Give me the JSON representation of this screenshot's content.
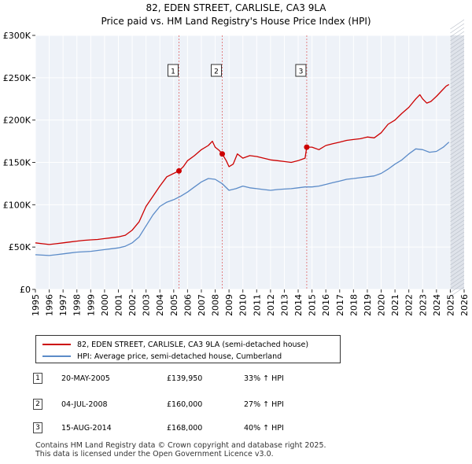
{
  "header": {
    "title": "82, EDEN STREET, CARLISLE, CA3 9LA",
    "subtitle": "Price paid vs. HM Land Registry's House Price Index (HPI)"
  },
  "chart_data": {
    "type": "line",
    "title": "82, EDEN STREET, CARLISLE, CA3 9LA",
    "subtitle": "Price paid vs. HM Land Registry's House Price Index (HPI)",
    "xlabel": "",
    "ylabel": "",
    "xlim": [
      1995,
      2026
    ],
    "ylim": [
      0,
      300000
    ],
    "grid": true,
    "x_ticks": [
      1995,
      1996,
      1997,
      1998,
      1999,
      2000,
      2001,
      2002,
      2003,
      2004,
      2005,
      2006,
      2007,
      2008,
      2009,
      2010,
      2011,
      2012,
      2013,
      2014,
      2015,
      2016,
      2017,
      2018,
      2019,
      2020,
      2021,
      2022,
      2023,
      2024,
      2025,
      2026
    ],
    "x_tick_labels": [
      "1995",
      "1996",
      "1997",
      "1998",
      "1999",
      "2000",
      "2001",
      "2002",
      "2003",
      "2004",
      "2005",
      "2006",
      "2007",
      "2008",
      "2009",
      "2010",
      "2011",
      "2012",
      "2013",
      "2014",
      "2015",
      "2016",
      "2017",
      "2018",
      "2019",
      "2020",
      "2021",
      "2022",
      "2023",
      "2024",
      "2025",
      "2026"
    ],
    "y_ticks": [
      0,
      50000,
      100000,
      150000,
      200000,
      250000,
      300000
    ],
    "y_tick_labels": [
      "£0",
      "£50K",
      "£100K",
      "£150K",
      "£200K",
      "£250K",
      "£300K"
    ],
    "future_shade_from": 2025.0,
    "series": [
      {
        "name": "82, EDEN STREET, CARLISLE, CA3 9LA (semi-detached house)",
        "color": "#cc0000",
        "x": [
          1995.0,
          1995.5,
          1996.0,
          1996.5,
          1997.0,
          1997.5,
          1998.0,
          1998.5,
          1999.0,
          1999.5,
          2000.0,
          2000.5,
          2001.0,
          2001.5,
          2002.0,
          2002.5,
          2003.0,
          2003.5,
          2004.0,
          2004.5,
          2005.0,
          2005.38,
          2005.7,
          2006.0,
          2006.5,
          2007.0,
          2007.5,
          2007.8,
          2008.0,
          2008.3,
          2008.51,
          2008.8,
          2009.0,
          2009.3,
          2009.6,
          2010.0,
          2010.5,
          2011.0,
          2011.5,
          2012.0,
          2012.5,
          2013.0,
          2013.5,
          2014.0,
          2014.5,
          2014.62,
          2015.0,
          2015.5,
          2016.0,
          2016.5,
          2017.0,
          2017.5,
          2018.0,
          2018.5,
          2019.0,
          2019.5,
          2020.0,
          2020.5,
          2021.0,
          2021.5,
          2022.0,
          2022.5,
          2022.8,
          2023.0,
          2023.3,
          2023.6,
          2024.0,
          2024.4,
          2024.7,
          2024.9
        ],
        "values": [
          55000,
          54000,
          53000,
          54000,
          55000,
          56000,
          57000,
          58000,
          58500,
          59000,
          60000,
          61000,
          62000,
          64000,
          70000,
          80000,
          98000,
          110000,
          122000,
          133000,
          137000,
          139950,
          145000,
          152000,
          158000,
          165000,
          170000,
          175000,
          168000,
          164000,
          160000,
          152000,
          145000,
          148000,
          160000,
          155000,
          158000,
          157000,
          155000,
          153000,
          152000,
          151000,
          150000,
          152000,
          155000,
          168000,
          168000,
          165000,
          170000,
          172000,
          174000,
          176000,
          177000,
          178000,
          180000,
          179000,
          185000,
          195000,
          200000,
          208000,
          215000,
          225000,
          230000,
          225000,
          220000,
          222000,
          228000,
          235000,
          240000,
          242000
        ]
      },
      {
        "name": "HPI: Average price, semi-detached house, Cumberland",
        "color": "#5b8bc8",
        "x": [
          1995.0,
          1995.5,
          1996.0,
          1996.5,
          1997.0,
          1997.5,
          1998.0,
          1998.5,
          1999.0,
          1999.5,
          2000.0,
          2000.5,
          2001.0,
          2001.5,
          2002.0,
          2002.5,
          2003.0,
          2003.5,
          2004.0,
          2004.5,
          2005.0,
          2005.5,
          2006.0,
          2006.5,
          2007.0,
          2007.5,
          2008.0,
          2008.5,
          2009.0,
          2009.5,
          2010.0,
          2010.5,
          2011.0,
          2011.5,
          2012.0,
          2012.5,
          2013.0,
          2013.5,
          2014.0,
          2014.5,
          2015.0,
          2015.5,
          2016.0,
          2016.5,
          2017.0,
          2017.5,
          2018.0,
          2018.5,
          2019.0,
          2019.5,
          2020.0,
          2020.5,
          2021.0,
          2021.5,
          2022.0,
          2022.5,
          2023.0,
          2023.5,
          2024.0,
          2024.5,
          2024.9
        ],
        "values": [
          41000,
          40500,
          40000,
          41000,
          42000,
          43000,
          44000,
          44500,
          45000,
          46000,
          47000,
          48000,
          49000,
          51000,
          55000,
          62000,
          75000,
          88000,
          98000,
          103000,
          106000,
          110000,
          115000,
          121000,
          127000,
          131000,
          130000,
          125000,
          117000,
          119000,
          122000,
          120000,
          119000,
          118000,
          117000,
          118000,
          118500,
          119000,
          120000,
          121000,
          121000,
          122000,
          124000,
          126000,
          128000,
          130000,
          131000,
          132000,
          133000,
          134000,
          137000,
          142000,
          148000,
          153000,
          160000,
          166000,
          165000,
          162000,
          163000,
          168000,
          174000
        ]
      }
    ],
    "transactions": [
      {
        "id": "1",
        "date": "20-MAY-2005",
        "x": 2005.38,
        "price": 139950,
        "price_label": "£139,950",
        "hpi_change": "33% ↑ HPI"
      },
      {
        "id": "2",
        "date": "04-JUL-2008",
        "x": 2008.51,
        "price": 160000,
        "price_label": "£160,000",
        "hpi_change": "27% ↑ HPI"
      },
      {
        "id": "3",
        "date": "15-AUG-2014",
        "x": 2014.62,
        "price": 168000,
        "price_label": "£168,000",
        "hpi_change": "40% ↑ HPI"
      }
    ]
  },
  "legend": {
    "items": [
      {
        "label": "82, EDEN STREET, CARLISLE, CA3 9LA (semi-detached house)",
        "color": "#cc0000"
      },
      {
        "label": "HPI: Average price, semi-detached house, Cumberland",
        "color": "#5b8bc8"
      }
    ]
  },
  "footer": {
    "line1": "Contains HM Land Registry data © Crown copyright and database right 2025.",
    "line2": "This data is licensed under the Open Government Licence v3.0."
  }
}
